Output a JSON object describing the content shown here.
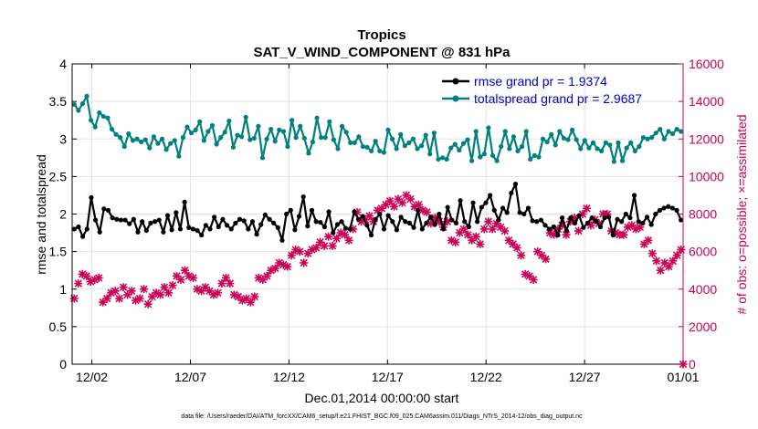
{
  "chart_data": {
    "type": "line",
    "title": "Tropics",
    "subtitle": "SAT_V_WIND_COMPONENT @ 831 hPa",
    "xlabel": "Dec.01,2014 00:00:00 start",
    "ylabel": "rmse and totalspread",
    "ylabel_right": "# of obs: o=possible; ×=assimilated",
    "xlim": [
      0,
      31
    ],
    "ylim": [
      0,
      4
    ],
    "ylim_right": [
      0,
      16000
    ],
    "x_ticks": [
      1,
      6,
      11,
      16,
      21,
      26,
      31
    ],
    "x_tick_labels": [
      "12/02",
      "12/07",
      "12/12",
      "12/17",
      "12/22",
      "12/27",
      "01/01"
    ],
    "y_ticks": [
      0,
      0.5,
      1,
      1.5,
      2,
      2.5,
      3,
      3.5,
      4
    ],
    "y_tick_labels": [
      "0",
      "0.5",
      "1",
      "1.5",
      "2",
      "2.5",
      "3",
      "3.5",
      "4"
    ],
    "y_ticks_right": [
      0,
      2000,
      4000,
      6000,
      8000,
      10000,
      12000,
      14000,
      16000
    ],
    "y_tick_labels_right": [
      "0",
      "2000",
      "4000",
      "6000",
      "8000",
      "10000",
      "12000",
      "14000",
      "16000"
    ],
    "grid": true,
    "legend": [
      "rmse grand pr = 1.9374",
      "totalspread grand pr = 2.9687"
    ],
    "legend_position": "top-right",
    "colors": {
      "rmse": "#000000",
      "spread": "#00807f",
      "obs": "#cc0055"
    },
    "series": [
      {
        "name": "rmse",
        "axis": "left",
        "values": [
          1.8,
          1.83,
          1.7,
          1.8,
          2.22,
          1.92,
          1.76,
          2.07,
          2.05,
          1.95,
          1.93,
          1.92,
          1.92,
          1.87,
          1.93,
          1.76,
          1.9,
          1.78,
          1.88,
          1.9,
          1.92,
          1.76,
          1.98,
          1.79,
          2.02,
          1.8,
          2.16,
          1.82,
          1.8,
          1.78,
          1.72,
          1.85,
          1.8,
          1.96,
          1.83,
          1.93,
          1.85,
          1.8,
          1.88,
          1.93,
          1.91,
          1.8,
          1.9,
          1.73,
          1.86,
          1.99,
          1.93,
          1.88,
          1.82,
          1.65,
          2.0,
          2.05,
          1.79,
          1.97,
          2.23,
          1.84,
          2.05,
          1.9,
          1.89,
          1.83,
          2.03,
          1.75,
          1.86,
          1.9,
          1.81,
          1.8,
          2.03,
          1.93,
          1.97,
          1.85,
          1.72,
          1.93,
          2.0,
          1.8,
          1.98,
          1.9,
          1.79,
          1.96,
          1.9,
          1.88,
          1.82,
          2.05,
          1.8,
          1.88,
          1.96,
          1.86,
          2.0,
          1.8,
          2.09,
          1.92,
          1.88,
          2.18,
          1.9,
          1.83,
          2.15,
          1.9,
          2.09,
          2.15,
          2.25,
          2.05,
          1.92,
          2.08,
          2.02,
          2.28,
          2.4,
          2.02,
          2.0,
          2.08,
          1.91,
          1.9,
          1.92,
          1.85,
          1.8,
          1.83,
          1.72,
          1.95,
          1.78,
          1.95,
          1.88,
          1.98,
          1.82,
          1.88,
          1.95,
          1.9,
          1.83,
          1.95,
          1.96,
          1.72,
          1.93,
          1.9,
          2.0,
          1.95,
          2.25,
          1.9,
          1.88,
          1.96,
          1.86,
          2.0,
          2.05,
          2.08,
          2.1,
          2.08,
          2.05,
          1.92
        ]
      },
      {
        "name": "totalspread",
        "axis": "left",
        "values": [
          3.46,
          3.38,
          3.47,
          3.57,
          3.25,
          3.16,
          3.35,
          3.3,
          3.28,
          3.13,
          3.06,
          3.02,
          2.9,
          3.07,
          2.98,
          3.0,
          2.96,
          2.99,
          2.88,
          3.03,
          2.94,
          3.0,
          2.86,
          2.94,
          2.98,
          2.77,
          3.02,
          3.16,
          3.08,
          3.12,
          3.23,
          2.98,
          3.1,
          3.18,
          2.93,
          3.02,
          3.09,
          3.24,
          2.89,
          3.05,
          3.03,
          3.29,
          2.99,
          3.01,
          3.17,
          2.75,
          3.0,
          3.13,
          2.97,
          3.12,
          3.1,
          2.9,
          3.25,
          3.02,
          3.17,
          3.01,
          2.81,
          2.96,
          3.28,
          3.02,
          3.02,
          3.23,
          2.99,
          2.87,
          3.17,
          3.09,
          2.95,
          2.95,
          3.03,
          2.9,
          2.89,
          2.84,
          2.97,
          2.84,
          2.82,
          3.12,
          3.0,
          2.87,
          3.06,
          2.91,
          2.95,
          3.0,
          2.87,
          2.91,
          3.05,
          2.8,
          3.08,
          2.73,
          2.75,
          2.73,
          2.88,
          2.93,
          2.85,
          2.94,
          2.99,
          2.71,
          3.1,
          2.76,
          2.8,
          3.15,
          2.78,
          2.71,
          2.9,
          3.1,
          2.87,
          3.03,
          2.84,
          2.9,
          3.1,
          2.73,
          2.78,
          2.76,
          3.0,
          2.96,
          3.06,
          2.92,
          3.1,
          3.01,
          2.99,
          3.12,
          2.99,
          2.87,
          2.98,
          2.88,
          2.95,
          2.87,
          2.84,
          2.95,
          2.92,
          2.7,
          2.95,
          2.71,
          2.88,
          2.95,
          2.84,
          2.9,
          3.02,
          3.0,
          3.02,
          3.08,
          3.13,
          3.0,
          3.1,
          3.07,
          3.13,
          3.1
        ]
      },
      {
        "name": "obs_assimilated",
        "axis": "right",
        "values": [
          3500,
          4300,
          4800,
          4700,
          4400,
          4500,
          4600,
          3300,
          3500,
          3800,
          3900,
          3500,
          4100,
          3700,
          3900,
          3400,
          3500,
          4000,
          3200,
          3600,
          3800,
          3700,
          4100,
          3800,
          4200,
          4700,
          4500,
          5000,
          4700,
          4600,
          4000,
          3900,
          4100,
          3900,
          3700,
          3800,
          4300,
          4600,
          4300,
          3700,
          3600,
          3400,
          3500,
          3300,
          3600,
          4600,
          4500,
          4700,
          5000,
          5100,
          5400,
          5300,
          5200,
          5800,
          6100,
          6000,
          5400,
          5900,
          6100,
          6200,
          6500,
          6300,
          6800,
          6300,
          6700,
          7000,
          6900,
          6600,
          7200,
          8100,
          7600,
          7700,
          7900,
          7600,
          8200,
          8300,
          8500,
          8700,
          8400,
          8800,
          8600,
          9000,
          8800,
          8400,
          8500,
          8200,
          8100,
          7500,
          7800,
          7600,
          7300,
          7600,
          6600,
          6500,
          7000,
          7200,
          6900,
          6600,
          6800,
          6400,
          7200,
          7600,
          7200,
          7500,
          7300,
          7100,
          6600,
          6400,
          6200,
          5800,
          4800,
          4700,
          4500,
          6000,
          5800,
          5600,
          7000,
          6900,
          7200,
          7400,
          6900,
          7600,
          7800,
          7100,
          8000,
          8300,
          7400,
          7700,
          7500,
          8000,
          8000,
          7100,
          7000,
          6900,
          6900,
          7300,
          7400,
          7200,
          7300,
          6400,
          6600,
          5900,
          5500,
          5000,
          5400,
          5200,
          5500,
          5800,
          6100,
          0
        ]
      }
    ],
    "footnote": "data file: /Users/raeder/DAI/ATM_forcXX/CAM6_setup/f.e21.FHIST_BGC.f09_025.CAM6assim.011/Diags_NTrS_2014-12/obs_diag_output.nc"
  }
}
